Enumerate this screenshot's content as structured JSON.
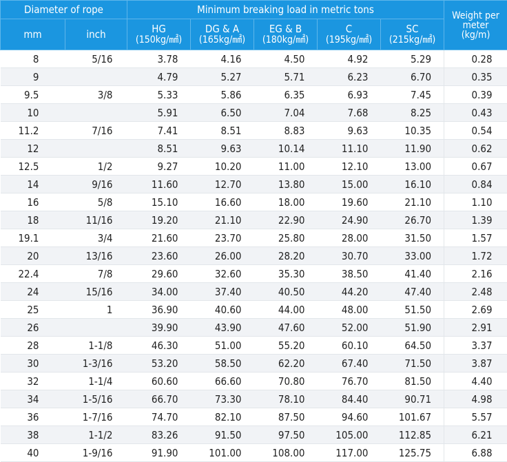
{
  "headers": {
    "diameter": "Diameter of rope",
    "minload": "Minimum breaking load in metric tons",
    "weight": [
      "Weight per",
      "meter",
      "(kg/m)"
    ],
    "mm": "mm",
    "inch": "inch",
    "grades": [
      {
        "name": "HG",
        "unit": "(150kg/㎟)"
      },
      {
        "name": "DG & A",
        "unit": "(165kg/㎟)"
      },
      {
        "name": "EG & B",
        "unit": "(180kg/㎟)"
      },
      {
        "name": "C",
        "unit": "(195kg/㎟)"
      },
      {
        "name": "SC",
        "unit": "(215kg/㎟)"
      }
    ]
  },
  "rows": [
    [
      "8",
      "5/16",
      "3.78",
      "4.16",
      "4.50",
      "4.92",
      "5.29",
      "0.28"
    ],
    [
      "9",
      "",
      "4.79",
      "5.27",
      "5.71",
      "6.23",
      "6.70",
      "0.35"
    ],
    [
      "9.5",
      "3/8",
      "5.33",
      "5.86",
      "6.35",
      "6.93",
      "7.45",
      "0.39"
    ],
    [
      "10",
      "",
      "5.91",
      "6.50",
      "7.04",
      "7.68",
      "8.25",
      "0.43"
    ],
    [
      "11.2",
      "7/16",
      "7.41",
      "8.51",
      "8.83",
      "9.63",
      "10.35",
      "0.54"
    ],
    [
      "12",
      "",
      "8.51",
      "9.63",
      "10.14",
      "11.10",
      "11.90",
      "0.62"
    ],
    [
      "12.5",
      "1/2",
      "9.27",
      "10.20",
      "11.00",
      "12.10",
      "13.00",
      "0.67"
    ],
    [
      "14",
      "9/16",
      "11.60",
      "12.70",
      "13.80",
      "15.00",
      "16.10",
      "0.84"
    ],
    [
      "16",
      "5/8",
      "15.10",
      "16.60",
      "18.00",
      "19.60",
      "21.10",
      "1.10"
    ],
    [
      "18",
      "11/16",
      "19.20",
      "21.10",
      "22.90",
      "24.90",
      "26.70",
      "1.39"
    ],
    [
      "19.1",
      "3/4",
      "21.60",
      "23.70",
      "25.80",
      "28.00",
      "31.50",
      "1.57"
    ],
    [
      "20",
      "13/16",
      "23.60",
      "26.00",
      "28.20",
      "30.70",
      "33.00",
      "1.72"
    ],
    [
      "22.4",
      "7/8",
      "29.60",
      "32.60",
      "35.30",
      "38.50",
      "41.40",
      "2.16"
    ],
    [
      "24",
      "15/16",
      "34.00",
      "37.40",
      "40.50",
      "44.20",
      "47.40",
      "2.48"
    ],
    [
      "25",
      "1",
      "36.90",
      "40.60",
      "44.00",
      "48.00",
      "51.50",
      "2.69"
    ],
    [
      "26",
      "",
      "39.90",
      "43.90",
      "47.60",
      "52.00",
      "51.90",
      "2.91"
    ],
    [
      "28",
      "1-1/8",
      "46.30",
      "51.00",
      "55.20",
      "60.10",
      "64.50",
      "3.37"
    ],
    [
      "30",
      "1-3/16",
      "53.20",
      "58.50",
      "62.20",
      "67.40",
      "71.50",
      "3.87"
    ],
    [
      "32",
      "1-1/4",
      "60.60",
      "66.60",
      "70.80",
      "76.70",
      "81.50",
      "4.40"
    ],
    [
      "34",
      "1-5/16",
      "66.70",
      "73.30",
      "78.10",
      "84.40",
      "90.71",
      "4.98"
    ],
    [
      "36",
      "1-7/16",
      "74.70",
      "82.10",
      "87.50",
      "94.60",
      "101.67",
      "5.57"
    ],
    [
      "38",
      "1-1/2",
      "83.26",
      "91.50",
      "97.50",
      "105.00",
      "112.85",
      "6.21"
    ],
    [
      "40",
      "1-9/16",
      "91.90",
      "101.00",
      "108.00",
      "117.00",
      "125.75",
      "6.88"
    ]
  ]
}
